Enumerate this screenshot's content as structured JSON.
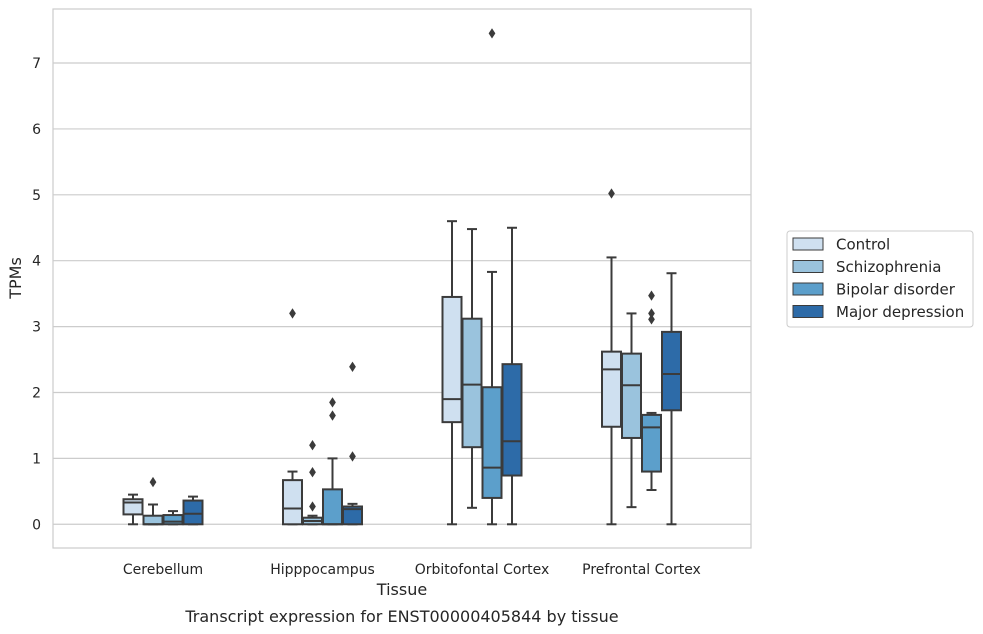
{
  "chart_data": {
    "type": "box",
    "title": "",
    "caption": "Transcript expression for ENST00000405844 by tissue",
    "xlabel": "Tissue",
    "ylabel": "TPMs",
    "ylim": [
      -0.36,
      7.82
    ],
    "yticks": [
      0,
      1,
      2,
      3,
      4,
      5,
      6,
      7
    ],
    "grid": "horizontal",
    "legend_position": "right",
    "categories": [
      "Cerebellum",
      "Hipppocampus",
      "Orbitofontal Cortex",
      "Prefrontal Cortex"
    ],
    "series": [
      {
        "name": "Control",
        "color": "#cfe0f0",
        "boxes": [
          {
            "whisker_low": 0.0,
            "q1": 0.15,
            "median": 0.33,
            "q3": 0.38,
            "whisker_high": 0.45,
            "outliers": []
          },
          {
            "whisker_low": 0.0,
            "q1": 0.0,
            "median": 0.24,
            "q3": 0.67,
            "whisker_high": 0.8,
            "outliers": [
              3.2
            ]
          },
          {
            "whisker_low": 0.0,
            "q1": 1.55,
            "median": 1.9,
            "q3": 3.45,
            "whisker_high": 4.6,
            "outliers": []
          },
          {
            "whisker_low": 0.0,
            "q1": 1.48,
            "median": 2.35,
            "q3": 2.62,
            "whisker_high": 4.05,
            "outliers": [
              5.02
            ]
          }
        ]
      },
      {
        "name": "Schizophrenia",
        "color": "#9ac3dd",
        "boxes": [
          {
            "whisker_low": 0.0,
            "q1": 0.0,
            "median": 0.0,
            "q3": 0.13,
            "whisker_high": 0.3,
            "outliers": [
              0.64
            ]
          },
          {
            "whisker_low": 0.0,
            "q1": 0.0,
            "median": 0.05,
            "q3": 0.1,
            "whisker_high": 0.13,
            "outliers": [
              0.27,
              0.79,
              1.2
            ]
          },
          {
            "whisker_low": 0.25,
            "q1": 1.17,
            "median": 2.12,
            "q3": 3.12,
            "whisker_high": 4.48,
            "outliers": []
          },
          {
            "whisker_low": 0.26,
            "q1": 1.31,
            "median": 2.11,
            "q3": 2.59,
            "whisker_high": 3.2,
            "outliers": []
          }
        ]
      },
      {
        "name": "Bipolar disorder",
        "color": "#5c9fcb",
        "boxes": [
          {
            "whisker_low": 0.0,
            "q1": 0.0,
            "median": 0.04,
            "q3": 0.14,
            "whisker_high": 0.2,
            "outliers": []
          },
          {
            "whisker_low": 0.0,
            "q1": 0.0,
            "median": 0.0,
            "q3": 0.53,
            "whisker_high": 1.0,
            "outliers": [
              1.65,
              1.85
            ]
          },
          {
            "whisker_low": 0.0,
            "q1": 0.4,
            "median": 0.86,
            "q3": 2.08,
            "whisker_high": 3.83,
            "outliers": [
              7.45
            ]
          },
          {
            "whisker_low": 0.52,
            "q1": 0.8,
            "median": 1.47,
            "q3": 1.66,
            "whisker_high": 1.69,
            "outliers": [
              3.11,
              3.2,
              3.47
            ]
          }
        ]
      },
      {
        "name": "Major depression",
        "color": "#2d6ba8",
        "boxes": [
          {
            "whisker_low": 0.0,
            "q1": 0.0,
            "median": 0.16,
            "q3": 0.36,
            "whisker_high": 0.42,
            "outliers": []
          },
          {
            "whisker_low": 0.0,
            "q1": 0.0,
            "median": 0.23,
            "q3": 0.27,
            "whisker_high": 0.31,
            "outliers": [
              1.03,
              2.39
            ]
          },
          {
            "whisker_low": 0.0,
            "q1": 0.74,
            "median": 1.26,
            "q3": 2.43,
            "whisker_high": 4.5,
            "outliers": []
          },
          {
            "whisker_low": 0.0,
            "q1": 1.73,
            "median": 2.28,
            "q3": 2.92,
            "whisker_high": 3.81,
            "outliers": []
          }
        ]
      }
    ]
  }
}
